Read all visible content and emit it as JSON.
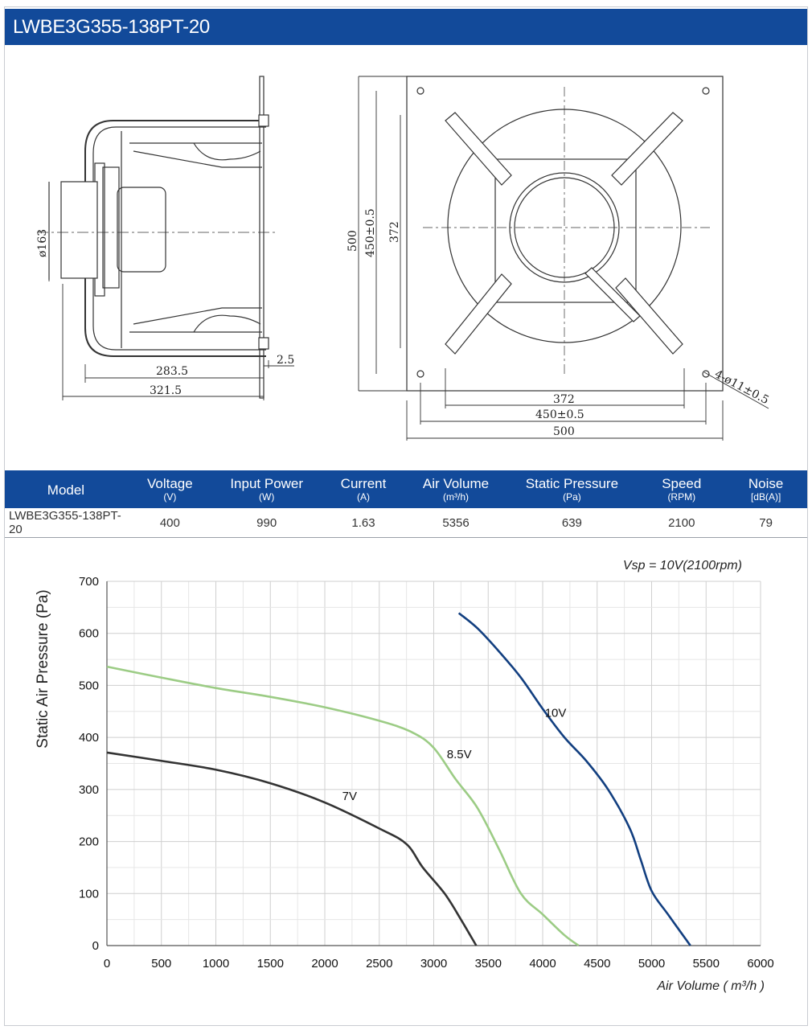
{
  "header": {
    "title": "LWBE3G355-138PT-20"
  },
  "drawing": {
    "dims": {
      "d163": "ø163",
      "d283": "283.5",
      "d321": "321.5",
      "d25": "2.5",
      "v500": "500",
      "v450": "450±0.5",
      "v372": "372",
      "h372": "372",
      "h450": "450±0.5",
      "h500": "500",
      "holes": "4-ø11±0.5"
    }
  },
  "table": {
    "headers": [
      {
        "label": "Model",
        "unit": ""
      },
      {
        "label": "Voltage",
        "unit": "(V)"
      },
      {
        "label": "Input Power",
        "unit": "(W)"
      },
      {
        "label": "Current",
        "unit": "(A)"
      },
      {
        "label": "Air Volume",
        "unit": "(m³/h)"
      },
      {
        "label": "Static Pressure",
        "unit": "(Pa)"
      },
      {
        "label": "Speed",
        "unit": "(RPM)"
      },
      {
        "label": "Noise",
        "unit": "[dB(A)]"
      }
    ],
    "row": [
      "LWBE3G355-138PT-20",
      "400",
      "990",
      "1.63",
      "5356",
      "639",
      "2100",
      "79"
    ]
  },
  "chart_data": {
    "type": "line",
    "title": "",
    "annotation": "Vsp = 10V(2100rpm)",
    "xlabel": "Air Volume ( m³/h )",
    "ylabel": "Static Air Pressure  (Pa)",
    "xlim": [
      0,
      6000
    ],
    "ylim": [
      0,
      700
    ],
    "xticks": [
      0,
      500,
      1000,
      1500,
      2000,
      2500,
      3000,
      3500,
      4000,
      4500,
      5000,
      5500,
      6000
    ],
    "yticks": [
      0,
      100,
      200,
      300,
      400,
      500,
      600,
      700
    ],
    "grid": true,
    "colors": {
      "10V": "#123f80",
      "8.5V": "#9ccc85",
      "7V": "#333333"
    },
    "series": [
      {
        "name": "10V",
        "x": [
          3230,
          3400,
          3600,
          3800,
          4000,
          4200,
          4400,
          4600,
          4800,
          4900,
          5000,
          5150,
          5356
        ],
        "y": [
          639,
          610,
          565,
          515,
          455,
          400,
          355,
          300,
          225,
          165,
          105,
          60,
          0
        ]
      },
      {
        "name": "8.5V",
        "x": [
          0,
          500,
          1000,
          1500,
          2000,
          2500,
          2800,
          3000,
          3200,
          3400,
          3600,
          3800,
          4000,
          4200,
          4330
        ],
        "y": [
          536,
          515,
          495,
          478,
          458,
          432,
          410,
          380,
          320,
          265,
          185,
          100,
          60,
          20,
          0
        ]
      },
      {
        "name": "7V",
        "x": [
          0,
          500,
          1000,
          1500,
          2000,
          2500,
          2750,
          2900,
          3100,
          3250,
          3390
        ],
        "y": [
          371,
          355,
          338,
          312,
          275,
          225,
          195,
          150,
          100,
          50,
          0
        ]
      }
    ],
    "labels": [
      {
        "series": "10V",
        "text": "10V",
        "x": 4020,
        "y": 440
      },
      {
        "series": "8.5V",
        "text": "8.5V",
        "x": 3120,
        "y": 360
      },
      {
        "series": "7V",
        "text": "7V",
        "x": 2160,
        "y": 280
      }
    ]
  }
}
